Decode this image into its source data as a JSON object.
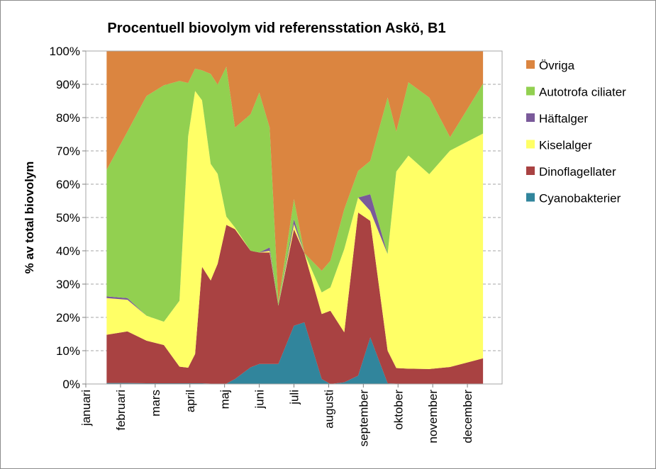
{
  "chart_data": {
    "type": "area",
    "stacked": true,
    "percent": true,
    "title": "Procentuell biovolym vid referensstation Askö, B1",
    "ylabel": "% av total biovolym",
    "xlabel": "",
    "ylim": [
      0,
      100
    ],
    "y_ticks": [
      "0%",
      "10%",
      "20%",
      "30%",
      "40%",
      "50%",
      "60%",
      "70%",
      "80%",
      "90%",
      "100%"
    ],
    "x_domain": [
      0,
      12
    ],
    "months": [
      {
        "label": "januari",
        "pos": 0
      },
      {
        "label": "februari",
        "pos": 1
      },
      {
        "label": "mars",
        "pos": 2
      },
      {
        "label": "april",
        "pos": 3
      },
      {
        "label": "maj",
        "pos": 4
      },
      {
        "label": "juni",
        "pos": 5
      },
      {
        "label": "juli",
        "pos": 6
      },
      {
        "label": "augusti",
        "pos": 7
      },
      {
        "label": "september",
        "pos": 8
      },
      {
        "label": "oktober",
        "pos": 9
      },
      {
        "label": "november",
        "pos": 10
      },
      {
        "label": "december",
        "pos": 11
      }
    ],
    "x": [
      0.6,
      1.2,
      1.75,
      2.25,
      2.7,
      2.95,
      3.15,
      3.35,
      3.6,
      3.8,
      4.05,
      4.3,
      4.75,
      5.0,
      5.3,
      5.55,
      6.0,
      6.3,
      6.8,
      7.05,
      7.45,
      7.85,
      8.2,
      8.7,
      8.95,
      9.3,
      9.9,
      10.5,
      11.45
    ],
    "series": [
      {
        "name": "Cyanobakterier",
        "color": "#31859c",
        "values": [
          0.3,
          0.3,
          0.2,
          0.2,
          0.2,
          0.2,
          0.2,
          0.2,
          0.1,
          0.1,
          0.1,
          1.5,
          5.0,
          6.0,
          6.0,
          6.0,
          17.5,
          18.5,
          1.5,
          0.0,
          0.5,
          2.5,
          14.0,
          0.2,
          0.1,
          0.1,
          0.1,
          0.1,
          0.1
        ]
      },
      {
        "name": "Dinoflagellater",
        "color": "#a94242",
        "values": [
          14.5,
          15.5,
          12.8,
          11.5,
          5.0,
          4.7,
          8.8,
          35.0,
          31.0,
          36.0,
          47.7,
          45.0,
          35.0,
          33.5,
          33.5,
          17.5,
          29.0,
          20.8,
          19.5,
          22.0,
          15.0,
          49.0,
          35.0,
          9.8,
          4.7,
          4.5,
          4.4,
          5.0,
          7.6
        ]
      },
      {
        "name": "Kiselalger",
        "color": "#ffff66",
        "values": [
          11.0,
          9.5,
          7.5,
          7.0,
          19.8,
          69.5,
          79.0,
          50.0,
          35.0,
          27.0,
          2.5,
          0.5,
          0.0,
          0.0,
          0.5,
          0.0,
          1.5,
          0.0,
          6.5,
          7.0,
          25.0,
          4.5,
          3.0,
          29.0,
          59.0,
          64.0,
          58.5,
          65.0,
          67.5
        ]
      },
      {
        "name": "Häftalger",
        "color": "#7a5a9a",
        "values": [
          0.5,
          0.5,
          0.0,
          0.0,
          0.0,
          0.0,
          0.0,
          0.0,
          0.0,
          0.0,
          0.0,
          0.0,
          0.0,
          0.0,
          1.0,
          0.0,
          1.5,
          0.0,
          0.0,
          0.0,
          0.0,
          0.0,
          5.0,
          0.0,
          0.0,
          0.0,
          0.0,
          0.0,
          0.0
        ]
      },
      {
        "name": "Autotrofa ciliater",
        "color": "#92d050",
        "values": [
          38.0,
          50.0,
          66.0,
          71.0,
          66.0,
          16.0,
          6.7,
          9.0,
          27.0,
          26.8,
          45.0,
          30.0,
          41.0,
          48.0,
          36.0,
          1.0,
          6.0,
          0.0,
          6.5,
          8.0,
          12.0,
          8.0,
          10.0,
          47.0,
          12.0,
          22.0,
          23.0,
          4.0,
          15.0
        ]
      },
      {
        "name": "Övriga",
        "color": "#db8540",
        "values": [
          35.7,
          24.2,
          13.5,
          10.3,
          9.0,
          9.6,
          5.3,
          5.8,
          6.9,
          10.1,
          4.7,
          23.0,
          19.0,
          12.5,
          23.0,
          75.5,
          44.5,
          60.7,
          66.0,
          63.0,
          47.5,
          36.0,
          33.0,
          14.0,
          24.2,
          9.4,
          14.0,
          25.9,
          9.8
        ]
      }
    ],
    "legend": {
      "position": "right",
      "order": [
        "Övriga",
        "Autotrofa ciliater",
        "Häftalger",
        "Kiselalger",
        "Dinoflagellater",
        "Cyanobakterier"
      ]
    },
    "grid": {
      "y_major": true,
      "style": "dashed"
    }
  }
}
